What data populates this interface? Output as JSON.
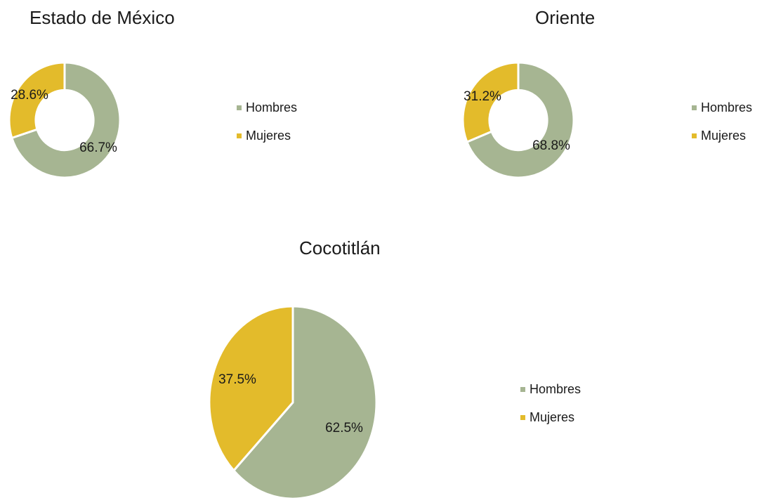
{
  "colors": {
    "hombres": "#a6b592",
    "mujeres": "#e3bb2b"
  },
  "chart_data": [
    {
      "type": "pie",
      "style": "donut",
      "title": "Estado de México",
      "categories": [
        "Hombres",
        "Mujeres"
      ],
      "values": [
        66.7,
        28.6
      ],
      "data_labels": [
        "66.7%",
        "28.6%"
      ],
      "legend": {
        "position": "right",
        "entries": [
          "Hombres",
          "Mujeres"
        ]
      }
    },
    {
      "type": "pie",
      "style": "donut",
      "title": "Oriente",
      "categories": [
        "Hombres",
        "Mujeres"
      ],
      "values": [
        68.8,
        31.2
      ],
      "data_labels": [
        "68.8%",
        "31.2%"
      ],
      "legend": {
        "position": "right",
        "entries": [
          "Hombres",
          "Mujeres"
        ]
      }
    },
    {
      "type": "pie",
      "style": "pie",
      "title": "Cocotitlán",
      "categories": [
        "Hombres",
        "Mujeres"
      ],
      "values": [
        62.5,
        37.5
      ],
      "data_labels": [
        "62.5%",
        "37.5%"
      ],
      "legend": {
        "position": "right",
        "entries": [
          "Hombres",
          "Mujeres"
        ]
      }
    }
  ]
}
